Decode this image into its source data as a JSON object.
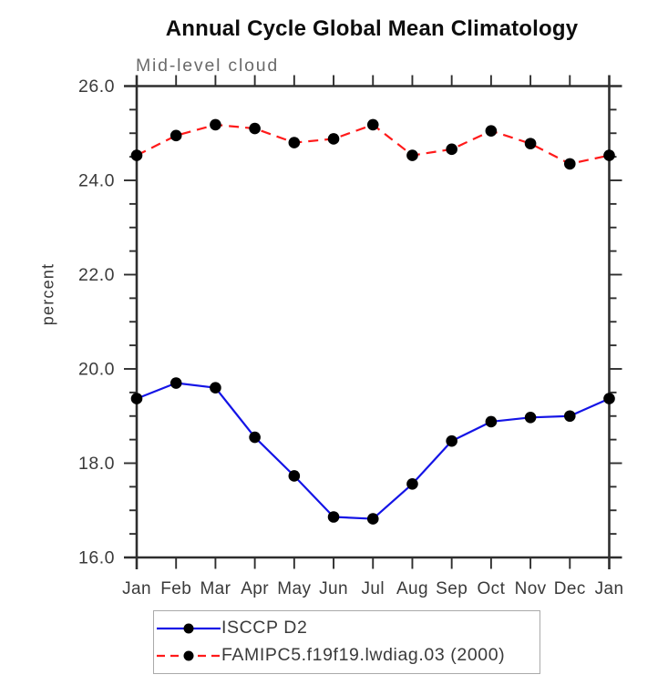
{
  "chart_data": {
    "type": "line",
    "title": "Annual Cycle Global Mean Climatology",
    "subtitle": "Mid-level cloud",
    "ylabel": "percent",
    "categories": [
      "Jan",
      "Feb",
      "Mar",
      "Apr",
      "May",
      "Jun",
      "Jul",
      "Aug",
      "Sep",
      "Oct",
      "Nov",
      "Dec",
      "Jan"
    ],
    "ylim": [
      16.0,
      26.0
    ],
    "ytick_major_interval": 2.0,
    "ytick_minor_interval": 0.5,
    "ytick_labels": [
      "16.0",
      "18.0",
      "20.0",
      "22.0",
      "24.0",
      "26.0"
    ],
    "grid": false,
    "legend_position": "bottom-left",
    "series": [
      {
        "name": "ISCCP D2",
        "color": "#1414e6",
        "line_style": "solid",
        "values": [
          19.37,
          19.7,
          19.6,
          18.55,
          17.73,
          16.86,
          16.82,
          17.56,
          18.47,
          18.88,
          18.97,
          19.0,
          19.37
        ]
      },
      {
        "name": "FAMIPC5.f19f19.lwdiag.03 (2000)",
        "color": "#ff1a1a",
        "line_style": "dashed",
        "values": [
          24.53,
          24.95,
          25.18,
          25.1,
          24.8,
          24.88,
          25.18,
          24.53,
          24.66,
          25.05,
          24.78,
          24.35,
          24.53
        ]
      }
    ],
    "marker": {
      "shape": "circle",
      "color": "#000000"
    },
    "colors": {
      "axis": "#2e2e2e",
      "tick_text": "#3a3a3a",
      "subtitle_text": "#6a6a6a",
      "title_text": "#0d0d0d",
      "legend_border": "#aaaaaa",
      "background": "#ffffff"
    }
  }
}
